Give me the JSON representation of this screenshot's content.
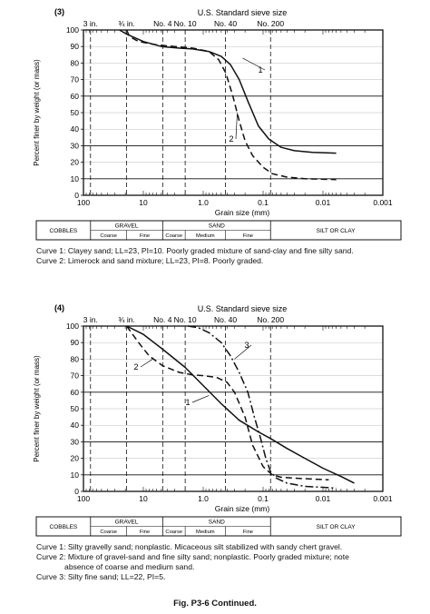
{
  "chart_data": [
    {
      "type": "line",
      "panel_number": "(3)",
      "sieve_title": "U.S. Standard sieve size",
      "sieve_labels": [
        "3 in.",
        "¾ in.",
        "No. 4",
        "No. 10",
        "No. 40",
        "No. 200"
      ],
      "sieve_sizes_mm": [
        76.2,
        19.0,
        4.75,
        2.0,
        0.425,
        0.075
      ],
      "xlabel": "Grain size (mm)",
      "ylabel": "Percent finer by weight (or mass)",
      "x_scale": "log",
      "x_reversed": true,
      "xlim": [
        100,
        0.001
      ],
      "ylim": [
        0,
        100
      ],
      "x_ticks": [
        "100",
        "10",
        "1.0",
        "0.1",
        "0.01",
        "0.001"
      ],
      "y_ticks": [
        "0",
        "10",
        "20",
        "30",
        "40",
        "50",
        "60",
        "70",
        "80",
        "90",
        "100"
      ],
      "series": [
        {
          "name": "1",
          "style": "solid",
          "x": [
            25,
            19,
            10,
            5,
            2.5,
            1.5,
            0.8,
            0.5,
            0.35,
            0.25,
            0.18,
            0.12,
            0.08,
            0.05,
            0.03,
            0.015,
            0.006
          ],
          "y": [
            100,
            97.5,
            93,
            90,
            89,
            88.5,
            87,
            84,
            79,
            70,
            57,
            42,
            34,
            29,
            27,
            26,
            25.5
          ]
        },
        {
          "name": "2",
          "style": "dashed",
          "x": [
            19,
            17,
            12,
            6,
            3,
            1.5,
            0.8,
            0.55,
            0.42,
            0.32,
            0.25,
            0.2,
            0.15,
            0.1,
            0.07,
            0.04,
            0.02,
            0.006
          ],
          "y": [
            100,
            96,
            93,
            91,
            90,
            89,
            87,
            82,
            74,
            60,
            45,
            33,
            24,
            17,
            13,
            11,
            10,
            9.5
          ]
        }
      ],
      "series_labels": [
        "1",
        "2"
      ],
      "classification": {
        "cobbles": "COBBLES",
        "gravel": "GRAVEL",
        "gravel_coarse": "Coarse",
        "gravel_fine": "Fine",
        "sand": "SAND",
        "sand_coarse": "Coarse",
        "sand_medium": "Medium",
        "sand_fine": "Fine",
        "silt_clay": "SILT OR CLAY"
      },
      "captions": [
        "Curve 1:  Clayey sand; LL=23, PI=10.  Poorly graded mixture of sand-clay and fine silty sand.",
        "Curve 2:  Limerock and sand mixture; LL=23, PI=8.  Poorly graded."
      ]
    },
    {
      "type": "line",
      "panel_number": "(4)",
      "sieve_title": "U.S. Standard sieve size",
      "sieve_labels": [
        "3 in.",
        "¾ in.",
        "No. 4",
        "No. 10",
        "No. 40",
        "No. 200"
      ],
      "sieve_sizes_mm": [
        76.2,
        19.0,
        4.75,
        2.0,
        0.425,
        0.075
      ],
      "xlabel": "Grain size (mm)",
      "ylabel": "Percent finer by weight (or mass)",
      "x_scale": "log",
      "x_reversed": true,
      "xlim": [
        100,
        0.001
      ],
      "ylim": [
        0,
        100
      ],
      "x_ticks": [
        "100",
        "10",
        "1.0",
        "0.1",
        "0.01",
        "0.001"
      ],
      "y_ticks": [
        "0",
        "10",
        "20",
        "30",
        "40",
        "50",
        "60",
        "70",
        "80",
        "90",
        "100"
      ],
      "series": [
        {
          "name": "1",
          "style": "solid",
          "x": [
            19,
            10,
            4.75,
            2,
            1,
            0.5,
            0.25,
            0.12,
            0.075,
            0.04,
            0.02,
            0.01,
            0.005,
            0.003
          ],
          "y": [
            100,
            95,
            86,
            75,
            64,
            53,
            43,
            36,
            32,
            26,
            20,
            14,
            9,
            5
          ]
        },
        {
          "name": "2",
          "style": "dashed",
          "x": [
            19,
            12,
            8,
            4.75,
            2.5,
            1.5,
            1,
            0.6,
            0.4,
            0.3,
            0.2,
            0.15,
            0.1,
            0.07,
            0.05,
            0.03,
            0.015,
            0.008
          ],
          "y": [
            100,
            90,
            82,
            76,
            72,
            70.5,
            70,
            69,
            66,
            60,
            45,
            28,
            15,
            10,
            8.5,
            8,
            7.5,
            7
          ]
        },
        {
          "name": "3",
          "style": "dashdot",
          "x": [
            1.8,
            1.2,
            0.8,
            0.5,
            0.35,
            0.25,
            0.18,
            0.14,
            0.11,
            0.09,
            0.075,
            0.06,
            0.04,
            0.02,
            0.01,
            0.006
          ],
          "y": [
            100,
            99,
            96,
            90,
            82,
            72,
            60,
            45,
            32,
            20,
            12,
            8,
            5,
            3,
            2.5,
            2
          ]
        }
      ],
      "series_labels": [
        "1",
        "2",
        "3"
      ],
      "classification": {
        "cobbles": "COBBLES",
        "gravel": "GRAVEL",
        "gravel_coarse": "Coarse",
        "gravel_fine": "Fine",
        "sand": "SAND",
        "sand_coarse": "Coarse",
        "sand_medium": "Medium",
        "sand_fine": "Fine",
        "silt_clay": "SILT OR CLAY"
      },
      "captions": [
        "Curve 1:  Silty gravelly sand; nonplastic.  Micaceous silt stabilized with sandy chert gravel.",
        "Curve 2:  Mixture of gravel-sand and fine silty sand; nonplastic.  Poorly graded mixture; note",
        "             absence of coarse and medium sand.",
        "Curve 3:  Silty fine sand; LL=22, PI=5."
      ]
    }
  ],
  "figure_caption": "Fig. P3-6    Continued."
}
